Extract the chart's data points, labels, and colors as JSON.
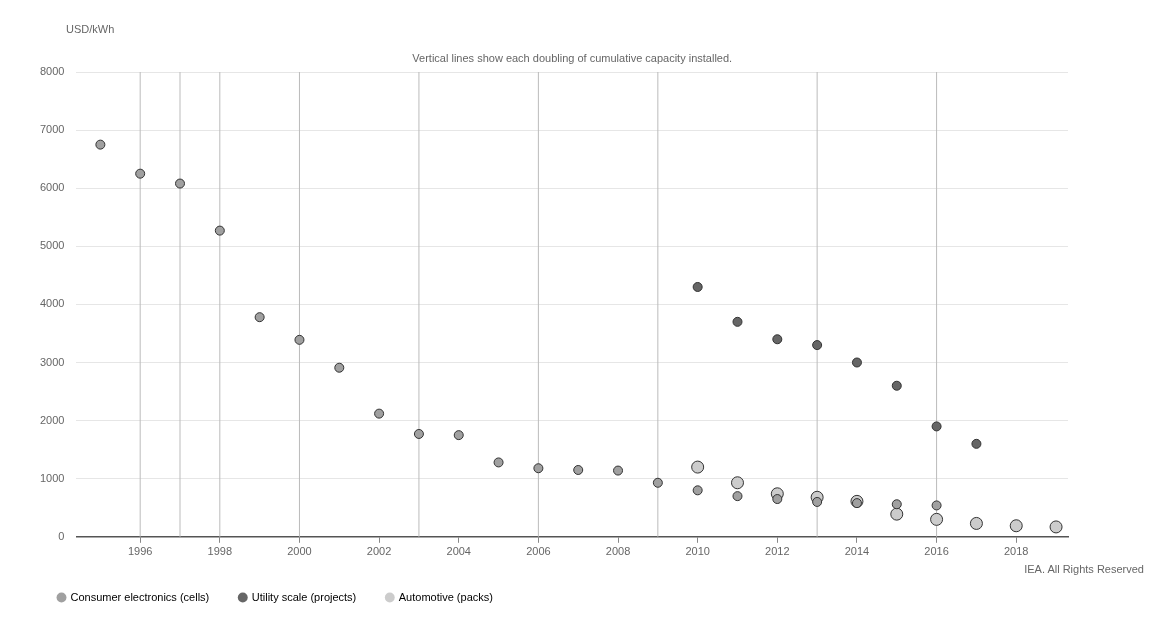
{
  "chart_data": {
    "type": "scatter",
    "subtitle": "Vertical lines show each doubling of cumulative capacity installed.",
    "ylabel": "USD/kWh",
    "annotations": [
      "IEA. All Rights Reserved"
    ],
    "series": [
      {
        "name": "Consumer electronics (cells)",
        "color": "#a0a0a0",
        "x": [
          1995,
          1996,
          1997,
          1998,
          1999,
          2000,
          2001,
          2002,
          2003,
          2004,
          2005,
          2006,
          2007,
          2008,
          2009,
          2010,
          2011,
          2012,
          2013,
          2014,
          2015,
          2016
        ],
        "values": [
          6750,
          6250,
          6080,
          5270,
          3780,
          3390,
          2910,
          2120,
          1770,
          1750,
          1280,
          1180,
          1150,
          1140,
          930,
          800,
          700,
          650,
          600,
          580,
          560,
          540
        ]
      },
      {
        "name": "Utility scale (projects)",
        "color": "#666666",
        "x": [
          2010,
          2011,
          2012,
          2013,
          2014,
          2015,
          2016,
          2017
        ],
        "values": [
          4300,
          3700,
          3400,
          3300,
          3000,
          2600,
          1900,
          1600
        ]
      },
      {
        "name": "Automotive (packs)",
        "color": "#cccccc",
        "x": [
          2010,
          2011,
          2012,
          2013,
          2014,
          2015,
          2016,
          2017,
          2018,
          2019
        ],
        "values": [
          1200,
          930,
          740,
          680,
          610,
          390,
          300,
          230,
          190,
          170
        ]
      }
    ],
    "xlim": [
      1994.4,
      2019.3
    ],
    "xticks": [
      1996,
      1998,
      2000,
      2002,
      2004,
      2006,
      2008,
      2010,
      2012,
      2014,
      2016,
      2018
    ],
    "ylim": [
      0,
      8000
    ],
    "yticks": [
      0,
      1000,
      2000,
      3000,
      4000,
      5000,
      6000,
      7000,
      8000
    ],
    "grid": "y",
    "legend": "bottom left",
    "marker": "circle",
    "ref_lines": [
      {
        "axis": "x",
        "value": 1996,
        "color": "#bbbbbb"
      },
      {
        "axis": "x",
        "value": 1997,
        "color": "#bbbbbb"
      },
      {
        "axis": "x",
        "value": 1998,
        "color": "#bbbbbb"
      },
      {
        "axis": "x",
        "value": 2000,
        "color": "#bbbbbb"
      },
      {
        "axis": "x",
        "value": 2003,
        "color": "#bbbbbb"
      },
      {
        "axis": "x",
        "value": 2006,
        "color": "#bbbbbb"
      },
      {
        "axis": "x",
        "value": 2009,
        "color": "#bbbbbb"
      },
      {
        "axis": "x",
        "value": 2013,
        "color": "#bbbbbb"
      },
      {
        "axis": "x",
        "value": 2016,
        "color": "#bbbbbb"
      }
    ]
  }
}
